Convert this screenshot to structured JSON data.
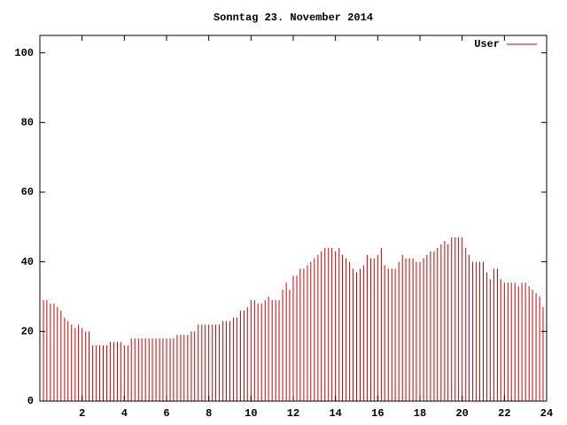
{
  "chart_data": {
    "type": "impulses",
    "title": "Sonntag 23. November 2014",
    "series": [
      {
        "name": "User",
        "color": "#cc0000",
        "values": [
          30,
          29,
          29,
          28,
          28,
          27,
          26,
          24,
          23,
          22,
          21,
          22,
          21,
          20,
          20,
          16,
          16,
          16,
          16,
          16,
          17,
          17,
          17,
          17,
          16,
          16,
          18,
          18,
          18,
          18,
          18,
          18,
          18,
          18,
          18,
          18,
          18,
          18,
          18,
          19,
          19,
          19,
          19,
          20,
          20,
          22,
          22,
          22,
          22,
          22,
          22,
          22,
          23,
          23,
          23,
          24,
          24,
          26,
          26,
          27,
          29,
          29,
          28,
          28,
          29,
          30,
          29,
          29,
          29,
          32,
          34,
          32,
          36,
          36,
          38,
          38,
          39,
          40,
          41,
          42,
          43,
          44,
          44,
          44,
          43,
          44,
          42,
          41,
          40,
          38,
          37,
          38,
          39,
          42,
          41,
          41,
          42,
          44,
          39,
          38,
          38,
          38,
          40,
          42,
          41,
          41,
          41,
          40,
          40,
          41,
          42,
          43,
          43,
          44,
          45,
          46,
          45,
          47,
          47,
          47,
          47,
          44,
          42,
          40,
          40,
          40,
          40,
          37,
          35,
          38,
          38,
          35,
          34,
          34,
          34,
          34,
          33,
          34,
          34,
          33,
          32,
          31,
          30,
          27
        ]
      }
    ],
    "x": [
      0,
      0.17,
      0.33,
      0.5,
      0.67,
      0.83,
      1,
      1.17,
      1.33,
      1.5,
      1.67,
      1.83,
      2,
      2.17,
      2.33,
      2.5,
      2.67,
      2.83,
      3,
      3.17,
      3.33,
      3.5,
      3.67,
      3.83,
      4,
      4.17,
      4.33,
      4.5,
      4.67,
      4.83,
      5,
      5.17,
      5.33,
      5.5,
      5.67,
      5.83,
      6,
      6.17,
      6.33,
      6.5,
      6.67,
      6.83,
      7,
      7.17,
      7.33,
      7.5,
      7.67,
      7.83,
      8,
      8.17,
      8.33,
      8.5,
      8.67,
      8.83,
      9,
      9.17,
      9.33,
      9.5,
      9.67,
      9.83,
      10,
      10.17,
      10.33,
      10.5,
      10.67,
      10.83,
      11,
      11.17,
      11.33,
      11.5,
      11.67,
      11.83,
      12,
      12.17,
      12.33,
      12.5,
      12.67,
      12.83,
      13,
      13.17,
      13.33,
      13.5,
      13.67,
      13.83,
      14,
      14.17,
      14.33,
      14.5,
      14.67,
      14.83,
      15,
      15.17,
      15.33,
      15.5,
      15.67,
      15.83,
      16,
      16.17,
      16.33,
      16.5,
      16.67,
      16.83,
      17,
      17.17,
      17.33,
      17.5,
      17.67,
      17.83,
      18,
      18.17,
      18.33,
      18.5,
      18.67,
      18.83,
      19,
      19.17,
      19.33,
      19.5,
      19.67,
      19.83,
      20,
      20.17,
      20.33,
      20.5,
      20.67,
      20.83,
      21,
      21.17,
      21.33,
      21.5,
      21.67,
      21.83,
      22,
      22.17,
      22.33,
      22.5,
      22.67,
      22.83,
      23,
      23.17,
      23.33,
      23.5,
      23.67,
      23.83
    ],
    "xlim": [
      0,
      24
    ],
    "xticks": [
      2,
      4,
      6,
      8,
      10,
      12,
      14,
      16,
      18,
      20,
      22,
      24
    ],
    "ylim": [
      0,
      105
    ],
    "yticks": [
      0,
      20,
      40,
      60,
      80,
      100
    ],
    "legend": "top-right"
  }
}
